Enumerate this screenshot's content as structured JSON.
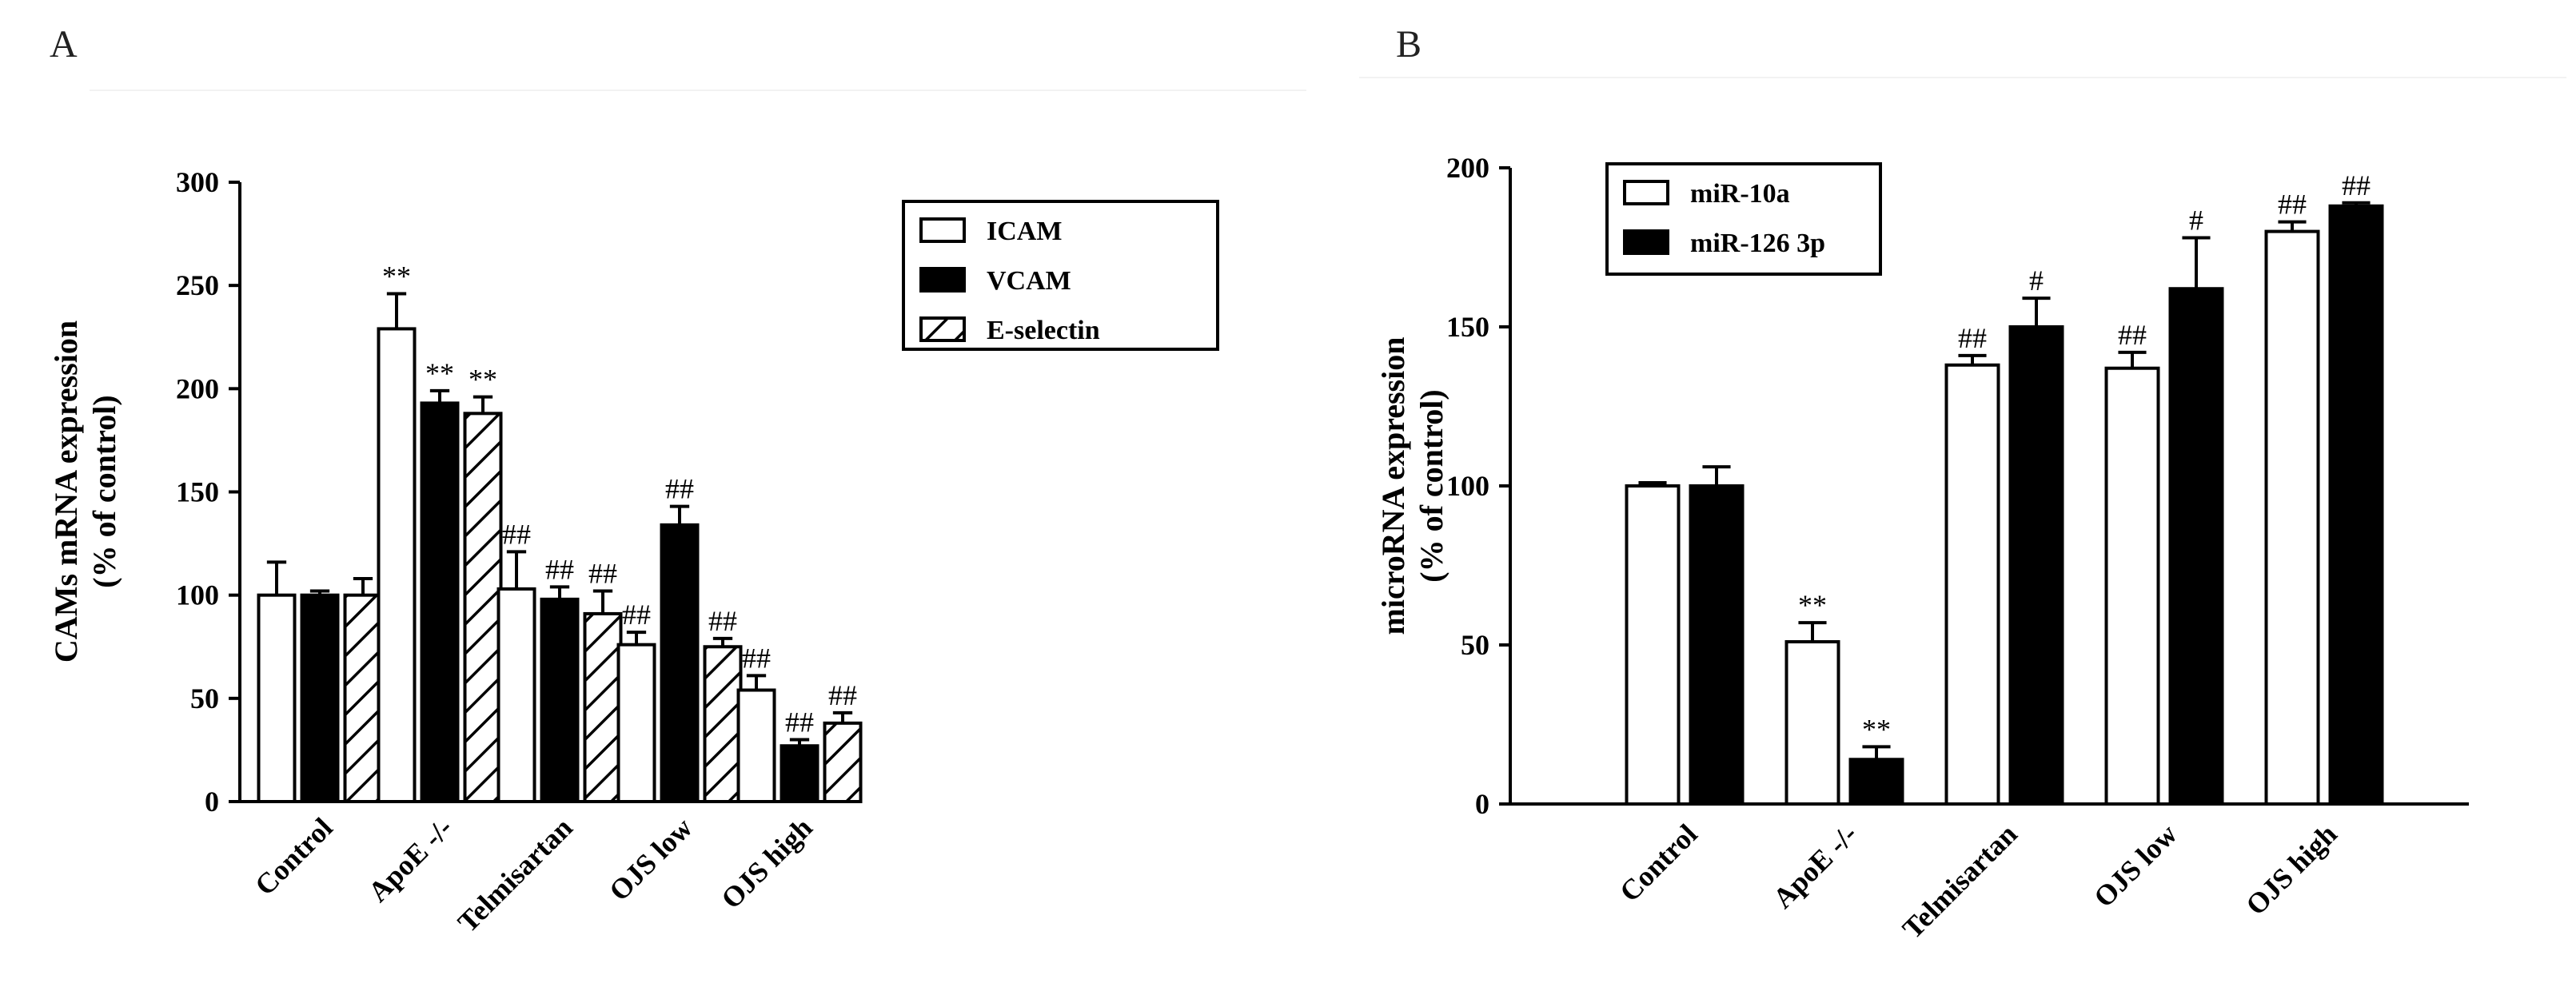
{
  "panels": {
    "a": "A",
    "b": "B"
  },
  "chart_data": [
    {
      "id": "A",
      "type": "bar",
      "title": "",
      "xlabel": "",
      "ylabel_lines": [
        "CAMs mRNA expression",
        "(% of control)"
      ],
      "ylim": [
        0,
        300
      ],
      "yticks": [
        0,
        50,
        100,
        150,
        200,
        250,
        300
      ],
      "grid": false,
      "legend_position": "top-right",
      "categories": [
        "Control",
        "ApoE -/-",
        "Telmisartan",
        "OJS low",
        "OJS high"
      ],
      "series": [
        {
          "name": "ICAM",
          "style": "white",
          "values": [
            100,
            229,
            103,
            76,
            54
          ],
          "errors": [
            16,
            17,
            18,
            6,
            7
          ],
          "annotations": [
            "",
            "**",
            "##",
            "##",
            "##"
          ]
        },
        {
          "name": "VCAM",
          "style": "black",
          "values": [
            100,
            193,
            98,
            134,
            27
          ],
          "errors": [
            2,
            6,
            6,
            9,
            3
          ],
          "annotations": [
            "",
            "**",
            "##",
            "##",
            "##"
          ]
        },
        {
          "name": "E-selectin",
          "style": "hatch",
          "values": [
            100,
            188,
            91,
            75,
            38
          ],
          "errors": [
            8,
            8,
            11,
            4,
            5
          ],
          "annotations": [
            "",
            "**",
            "##",
            "##",
            "##"
          ]
        }
      ]
    },
    {
      "id": "B",
      "type": "bar",
      "title": "",
      "xlabel": "",
      "ylabel_lines": [
        "microRNA expression",
        "(% of control)"
      ],
      "ylim": [
        0,
        200
      ],
      "yticks": [
        0,
        50,
        100,
        150,
        200
      ],
      "grid": false,
      "legend_position": "top-left",
      "categories": [
        "Control",
        "ApoE -/-",
        "Telmisartan",
        "OJS low",
        "OJS high"
      ],
      "series": [
        {
          "name": "miR-10a",
          "style": "white",
          "values": [
            100,
            51,
            138,
            137,
            180
          ],
          "errors": [
            1,
            6,
            3,
            5,
            3
          ],
          "annotations": [
            "",
            "**",
            "##",
            "##",
            "##"
          ]
        },
        {
          "name": "miR-126 3p",
          "style": "black",
          "values": [
            100,
            14,
            150,
            162,
            188
          ],
          "errors": [
            6,
            4,
            9,
            16,
            1
          ],
          "annotations": [
            "",
            "**",
            "#",
            "#",
            "##"
          ]
        }
      ]
    }
  ]
}
